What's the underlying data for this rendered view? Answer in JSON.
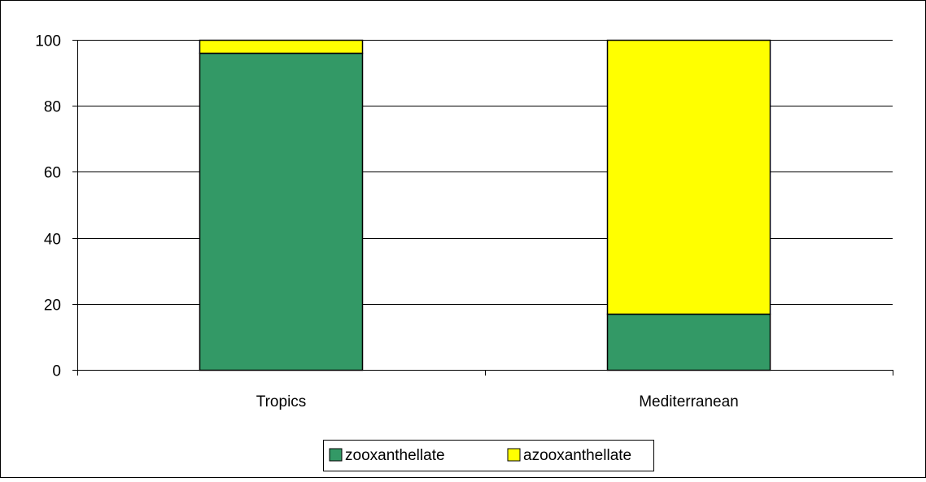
{
  "chart_data": {
    "type": "bar",
    "stacked": true,
    "categories": [
      "Tropics",
      "Mediterranean"
    ],
    "series": [
      {
        "name": "zooxanthellate",
        "values": [
          96,
          17
        ],
        "color": "#339966"
      },
      {
        "name": "azooxanthellate",
        "values": [
          4,
          83
        ],
        "color": "#ffff00"
      }
    ],
    "title": "",
    "xlabel": "",
    "ylabel": "",
    "ylim": [
      0,
      100
    ],
    "yticks": [
      0,
      20,
      40,
      60,
      80,
      100
    ],
    "grid": true,
    "legend_position": "bottom"
  }
}
